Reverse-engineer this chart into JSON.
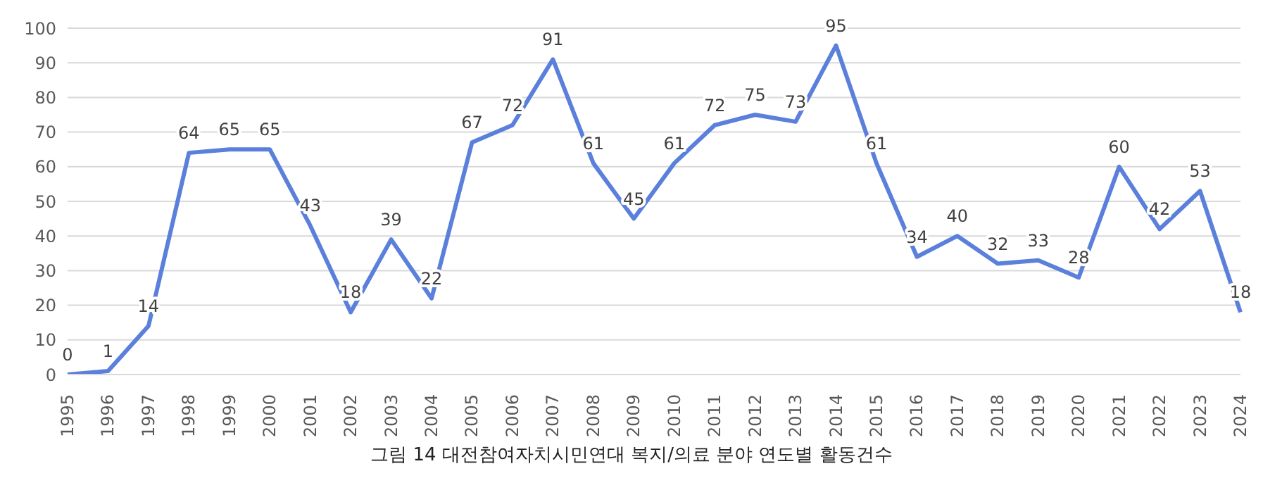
{
  "chart_data": {
    "type": "line",
    "title": "그림 14 대전참여자치시민연대 복지/의료 분야 연도별 활동건수",
    "categories": [
      "1995",
      "1996",
      "1997",
      "1998",
      "1999",
      "2000",
      "2001",
      "2002",
      "2003",
      "2004",
      "2005",
      "2006",
      "2007",
      "2008",
      "2009",
      "2010",
      "2011",
      "2012",
      "2013",
      "2014",
      "2015",
      "2016",
      "2017",
      "2018",
      "2019",
      "2020",
      "2021",
      "2022",
      "2023",
      "2024"
    ],
    "series": [
      {
        "color": "#5b80dc",
        "values": [
          0,
          1,
          14,
          64,
          65,
          65,
          43,
          18,
          39,
          22,
          67,
          72,
          91,
          61,
          45,
          61,
          72,
          75,
          73,
          95,
          61,
          34,
          40,
          32,
          33,
          28,
          60,
          42,
          53,
          18
        ]
      }
    ],
    "ylim": [
      0,
      100
    ],
    "yticks": [
      0,
      10,
      20,
      30,
      40,
      50,
      60,
      70,
      80,
      90,
      100
    ],
    "grid": "y",
    "data_labels": true,
    "marker": "none",
    "line_style": "solid"
  }
}
